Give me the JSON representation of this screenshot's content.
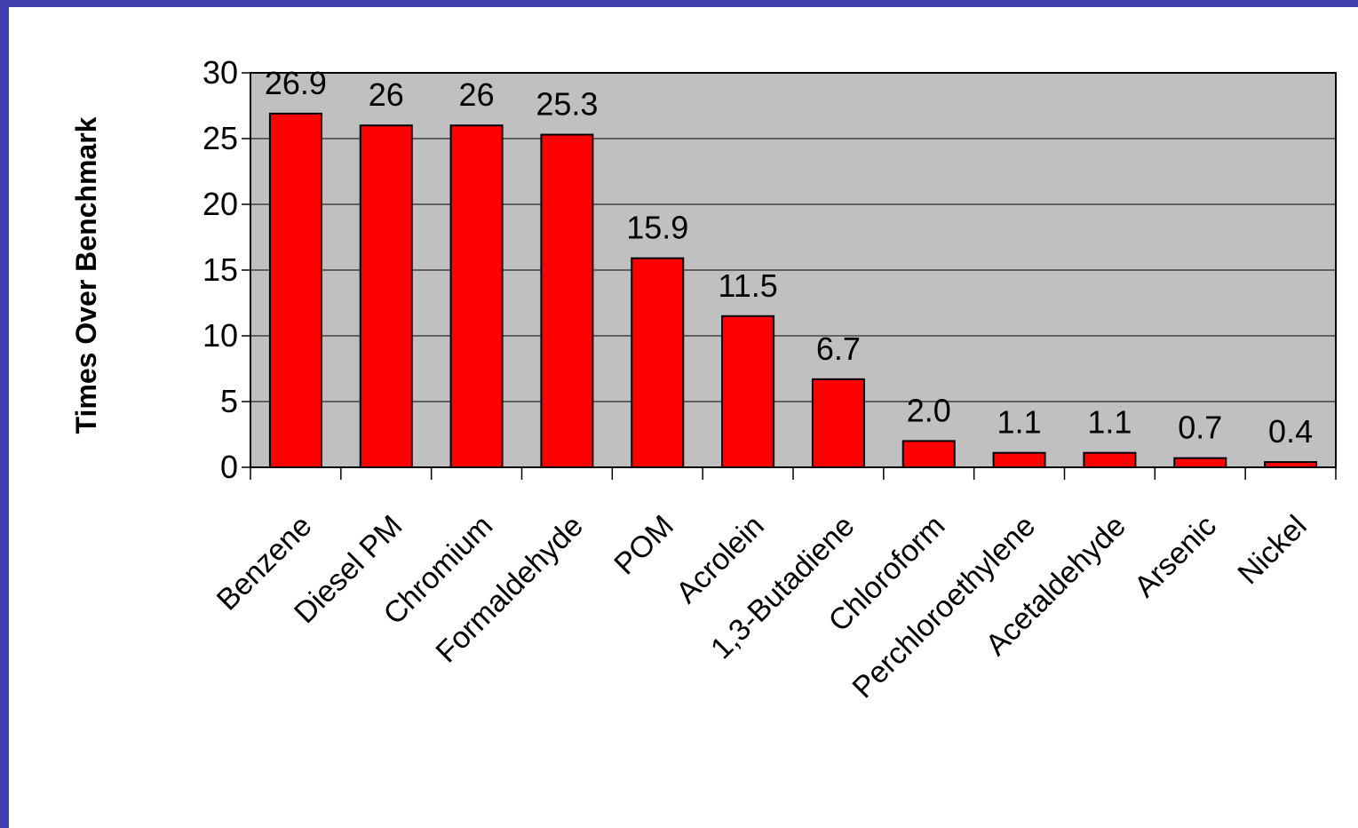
{
  "chart_data": {
    "type": "bar",
    "ylabel": "Times Over Benchmark",
    "xlabel": "",
    "ylim": [
      0,
      30
    ],
    "yticks": [
      0,
      5,
      10,
      15,
      20,
      25,
      30
    ],
    "grid": true,
    "categories": [
      "Benzene",
      "Diesel PM",
      "Chromium",
      "Formaldehyde",
      "POM",
      "Acrolein",
      "1,3-Butadiene",
      "Chloroform",
      "Perchloroethylene",
      "Acetaldehyde",
      "Arsenic",
      "Nickel"
    ],
    "values": [
      26.9,
      26,
      26,
      25.3,
      15.9,
      11.5,
      6.7,
      2.0,
      1.1,
      1.1,
      0.7,
      0.4
    ],
    "data_labels": [
      "26.9",
      "26",
      "26",
      "25.3",
      "15.9",
      "11.5",
      "6.7",
      "2.0",
      "1.1",
      "1.1",
      "0.7",
      "0.4"
    ],
    "colors": {
      "bar": "#ff0000",
      "plot_background": "#c0c0c0",
      "page_background": "#ffffff",
      "border": "#3f3fb0"
    }
  }
}
